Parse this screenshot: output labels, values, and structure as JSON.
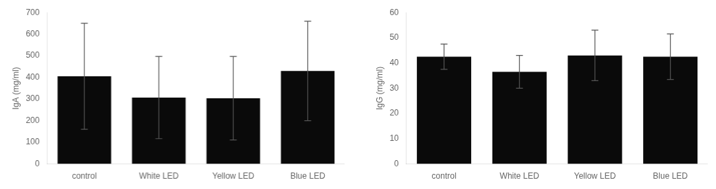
{
  "chart_data": [
    {
      "type": "bar",
      "categories": [
        "control",
        "White LED",
        "Yellow LED",
        "Blue LED"
      ],
      "values": [
        405,
        307,
        304,
        430
      ],
      "errors": [
        245,
        190,
        193,
        230
      ],
      "ylabel": "IgA (mg/ml)",
      "ylim": [
        0,
        700
      ],
      "yticks": [
        0,
        100,
        200,
        300,
        400,
        500,
        600,
        700
      ],
      "color": "#0a0a0a",
      "grid": false
    },
    {
      "type": "bar",
      "categories": [
        "control",
        "White LED",
        "Yellow LED",
        "Blue LED"
      ],
      "values": [
        42.5,
        36.5,
        43.0,
        42.5
      ],
      "errors": [
        5.0,
        6.5,
        10.0,
        9.0
      ],
      "ylabel": "IgG (mg/ml)",
      "ylim": [
        0,
        60
      ],
      "yticks": [
        0,
        10,
        20,
        30,
        40,
        50,
        60
      ],
      "color": "#0a0a0a",
      "grid": false
    }
  ]
}
